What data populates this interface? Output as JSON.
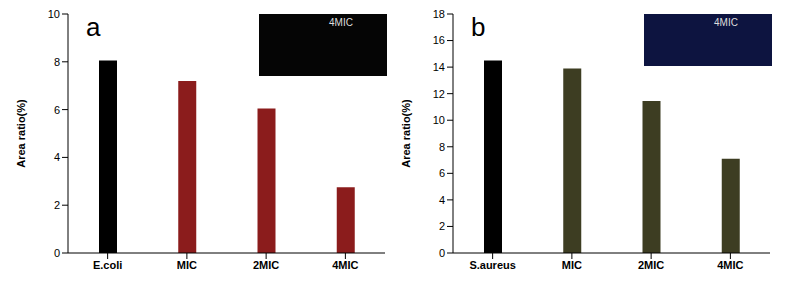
{
  "chart_data": [
    {
      "type": "bar",
      "panel_label": "a",
      "inset_label": "4MIC",
      "y_label": "Area ratio(%)",
      "categories": [
        "E.coli",
        "MIC",
        "2MIC",
        "4MIC"
      ],
      "values": [
        8.05,
        7.2,
        6.05,
        2.75
      ],
      "colors": [
        "#000000",
        "#8b1c1c",
        "#8b1c1c",
        "#8b1c1c"
      ],
      "ylim": [
        0,
        10
      ],
      "yticks": [
        0,
        2,
        4,
        6,
        8,
        10
      ],
      "grid": false
    },
    {
      "type": "bar",
      "panel_label": "b",
      "inset_label": "4MIC",
      "y_label": "Area ratio(%)",
      "categories": [
        "S.aureus",
        "MIC",
        "2MIC",
        "4MIC"
      ],
      "values": [
        14.5,
        13.9,
        11.45,
        7.1
      ],
      "colors": [
        "#000000",
        "#3d3d22",
        "#3d3d22",
        "#3d3d22"
      ],
      "ylim": [
        0,
        18
      ],
      "yticks": [
        0,
        2,
        4,
        6,
        8,
        10,
        12,
        14,
        16,
        18
      ],
      "grid": false
    }
  ]
}
